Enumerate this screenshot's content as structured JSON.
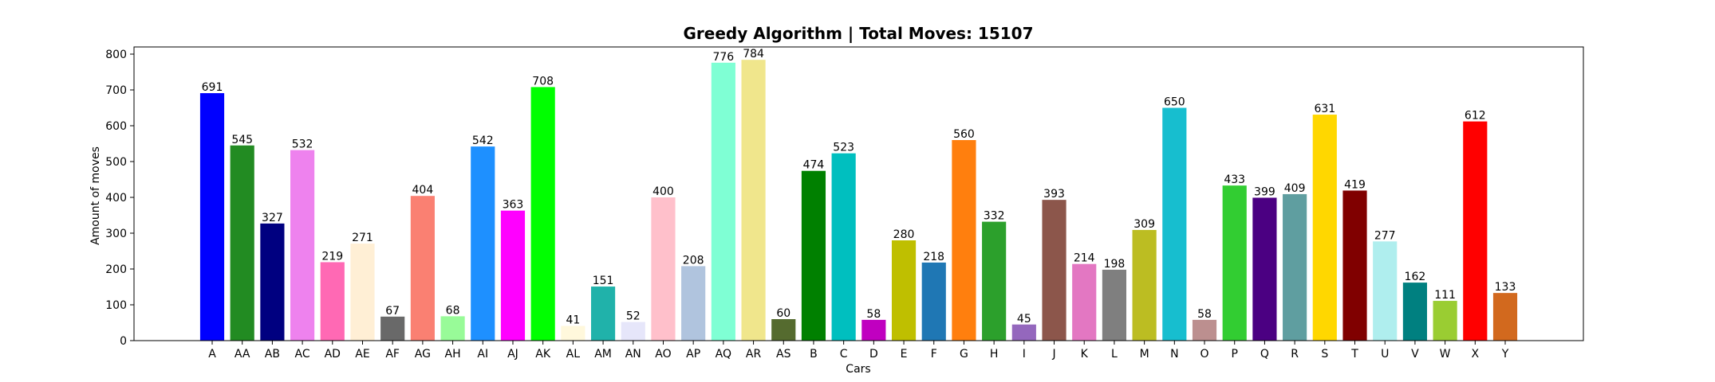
{
  "chart_data": {
    "type": "bar",
    "title": "Greedy Algorithm | Total Moves: 15107",
    "xlabel": "Cars",
    "ylabel": "Amount of moves",
    "ylim": [
      0,
      820
    ],
    "yticks": [
      0,
      100,
      200,
      300,
      400,
      500,
      600,
      700,
      800
    ],
    "grid": false,
    "categories": [
      "A",
      "AA",
      "AB",
      "AC",
      "AD",
      "AE",
      "AF",
      "AG",
      "AH",
      "AI",
      "AJ",
      "AK",
      "AL",
      "AM",
      "AN",
      "AO",
      "AP",
      "AQ",
      "AR",
      "AS",
      "B",
      "C",
      "D",
      "E",
      "F",
      "G",
      "H",
      "I",
      "J",
      "K",
      "L",
      "M",
      "N",
      "O",
      "P",
      "Q",
      "R",
      "S",
      "T",
      "U",
      "V",
      "W",
      "X",
      "Y"
    ],
    "values": [
      691,
      545,
      327,
      532,
      219,
      271,
      67,
      404,
      68,
      542,
      363,
      708,
      41,
      151,
      52,
      400,
      208,
      776,
      784,
      60,
      474,
      523,
      58,
      280,
      218,
      560,
      332,
      45,
      393,
      214,
      198,
      309,
      650,
      58,
      433,
      399,
      409,
      631,
      419,
      277,
      162,
      111,
      612,
      133
    ],
    "colors": [
      "#0000ff",
      "#228b22",
      "#000080",
      "#ee82ee",
      "#ff69b4",
      "#ffefd5",
      "#696969",
      "#fa8072",
      "#98fb98",
      "#1e90ff",
      "#ff00ff",
      "#00ff00",
      "#fff8dc",
      "#20b2aa",
      "#e6e6fa",
      "#ffc0cb",
      "#b0c4de",
      "#7fffd4",
      "#f0e68c",
      "#556b2f",
      "#008000",
      "#00bfbf",
      "#c000c0",
      "#bfbf00",
      "#1f77b4",
      "#ff7f0e",
      "#2ca02c",
      "#9467bd",
      "#8c564b",
      "#e377c2",
      "#7f7f7f",
      "#bcbd22",
      "#17becf",
      "#bc8f8f",
      "#32cd32",
      "#4b0082",
      "#5f9ea0",
      "#ffd700",
      "#800000",
      "#afeeee",
      "#008080",
      "#9acd32",
      "#ff0000",
      "#d2691e"
    ]
  }
}
